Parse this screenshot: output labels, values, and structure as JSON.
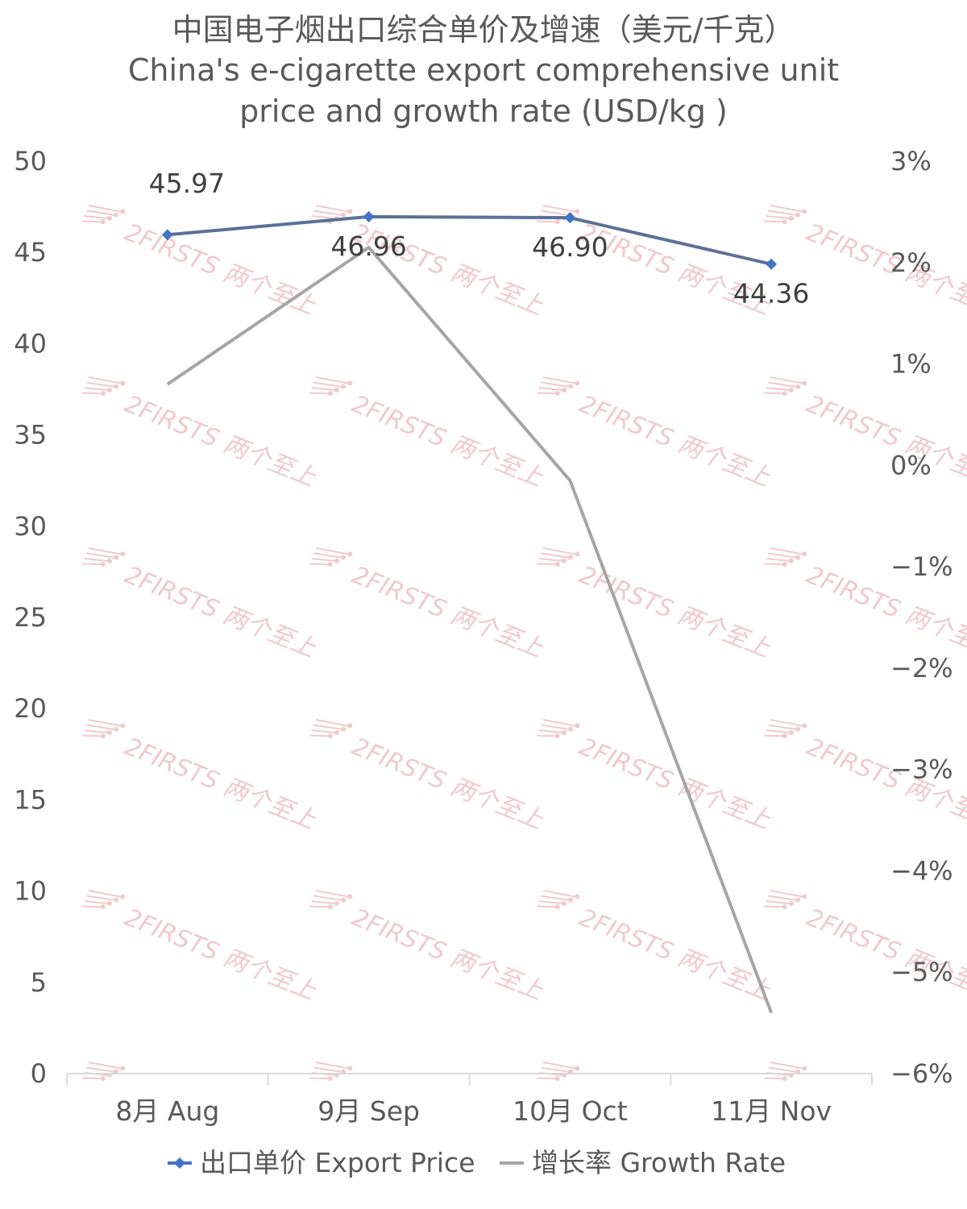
{
  "chart_data": {
    "type": "line",
    "title_lines": [
      "中国电子烟出口综合单价及增速（美元/千克）",
      "China's e-cigarette export comprehensive unit",
      "price and growth rate (USD/kg )"
    ],
    "categories": [
      "8月 Aug",
      "9月 Sep",
      "10月 Oct",
      "11月 Nov"
    ],
    "series": [
      {
        "name": "出口单价 Export Price",
        "axis": "left",
        "values": [
          45.97,
          46.96,
          46.9,
          44.36
        ],
        "data_labels": [
          "45.97",
          "46.96",
          "46.90",
          "44.36"
        ],
        "color": "#5b7196",
        "marker_color": "#4472c4"
      },
      {
        "name": "增长率 Growth Rate",
        "axis": "right",
        "values": [
          0.8,
          2.15,
          -0.15,
          -5.4
        ],
        "color": "#a5a5a5"
      }
    ],
    "y_left": {
      "min": 0,
      "max": 50,
      "step": 5,
      "ticks": [
        "0",
        "5",
        "10",
        "15",
        "20",
        "25",
        "30",
        "35",
        "40",
        "45",
        "50"
      ]
    },
    "y_right": {
      "min": -6,
      "max": 3,
      "step": 1,
      "ticks": [
        "−6%",
        "−5%",
        "−4%",
        "−3%",
        "−2%",
        "−1%",
        "0%",
        "1%",
        "2%",
        "3%"
      ]
    },
    "grid": false,
    "legend_position": "bottom",
    "watermark": {
      "text": "2FIRSTS 两个至上",
      "color": "#f0c9cd"
    }
  }
}
